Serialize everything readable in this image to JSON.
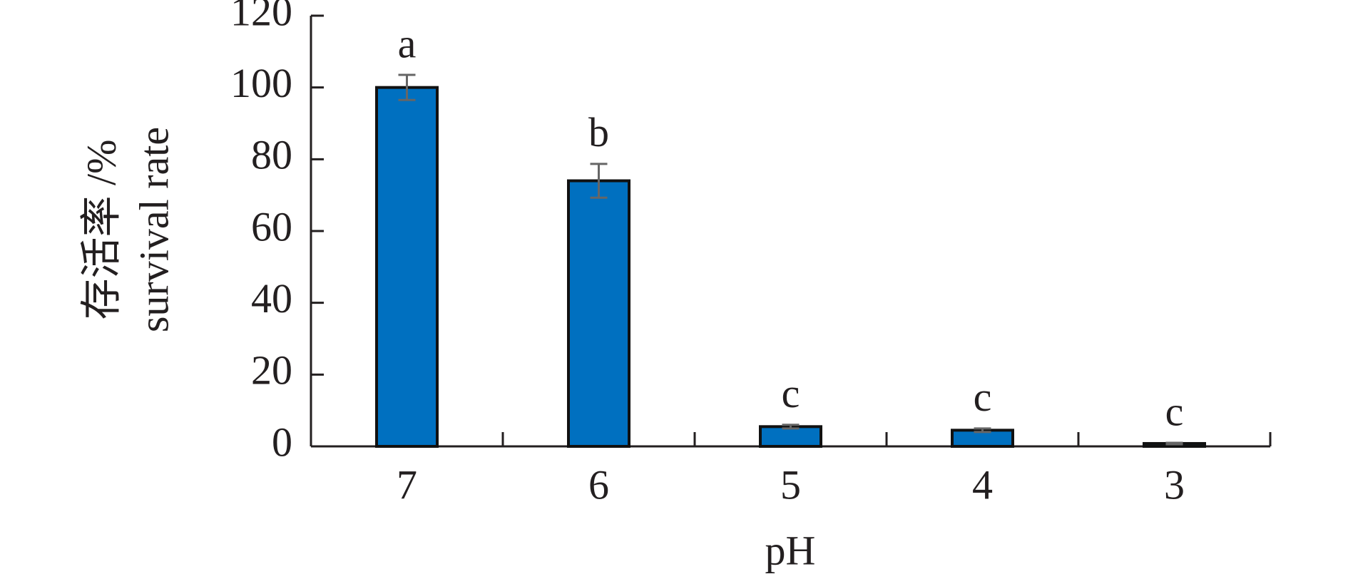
{
  "chart_data": {
    "type": "bar",
    "xlabel": "pH",
    "ylabel": [
      "存活率 /%",
      "survival rate"
    ],
    "categories": [
      "7",
      "6",
      "5",
      "4",
      "3"
    ],
    "values": [
      100,
      74,
      5.5,
      4.5,
      0.8
    ],
    "errors": [
      3.5,
      4.7,
      0.5,
      0.5,
      0.2
    ],
    "annotations": [
      "a",
      "b",
      "c",
      "c",
      "c"
    ],
    "color": "#0070c0",
    "error_color": "#666666",
    "ylim": [
      0,
      120
    ],
    "yticks": [
      0,
      20,
      40,
      60,
      80,
      100,
      120
    ],
    "grid": false
  }
}
